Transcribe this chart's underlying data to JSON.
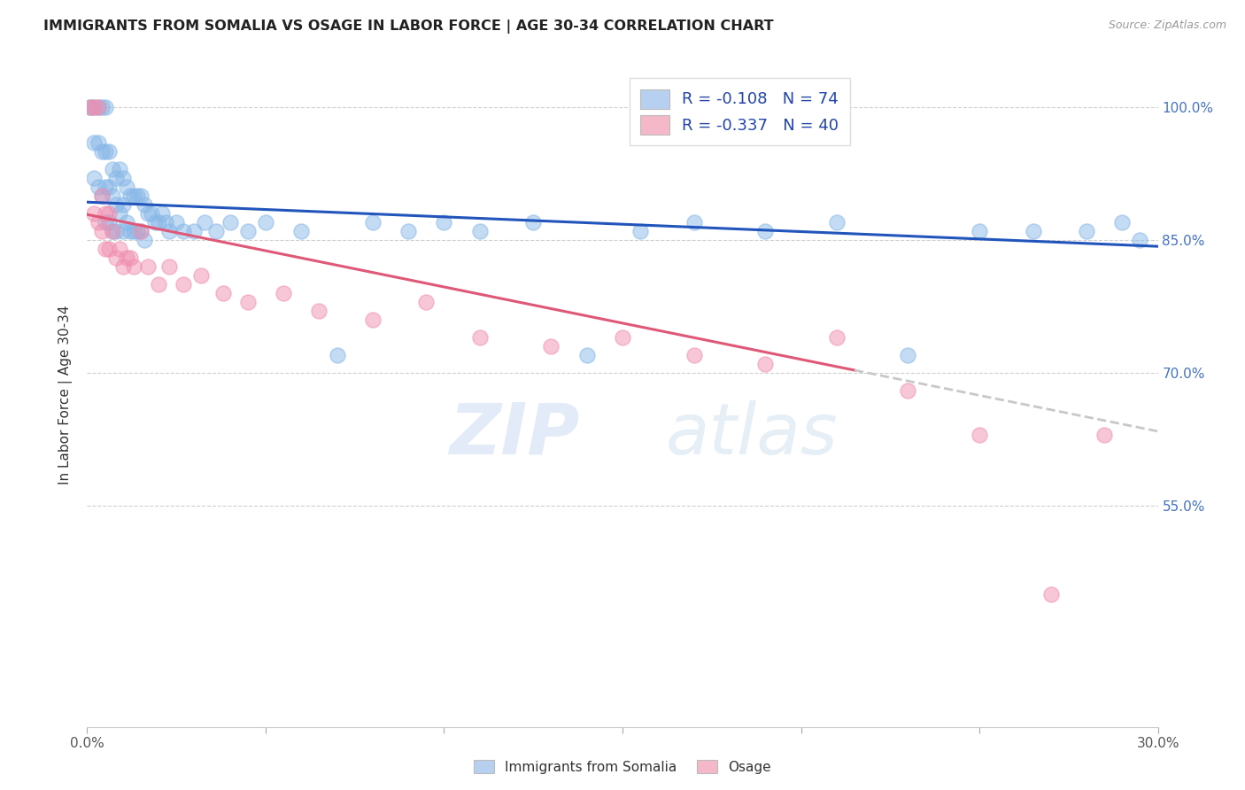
{
  "title": "IMMIGRANTS FROM SOMALIA VS OSAGE IN LABOR FORCE | AGE 30-34 CORRELATION CHART",
  "source": "Source: ZipAtlas.com",
  "ylabel": "In Labor Force | Age 30-34",
  "xmin": 0.0,
  "xmax": 0.3,
  "ymin": 0.3,
  "ymax": 1.05,
  "ytick_vals": [
    1.0,
    0.85,
    0.7,
    0.55
  ],
  "ytick_labels": [
    "100.0%",
    "85.0%",
    "70.0%",
    "55.0%"
  ],
  "legend1_color": "#b8d0f0",
  "legend2_color": "#f5b8c8",
  "scatter_blue_color": "#88b8e8",
  "scatter_pink_color": "#f090b0",
  "line_blue_color": "#2255bb",
  "line_pink_color": "#e05878",
  "line_dash_color": "#c8c8c8",
  "somalia_x": [
    0.001,
    0.001,
    0.002,
    0.002,
    0.002,
    0.003,
    0.003,
    0.003,
    0.004,
    0.004,
    0.004,
    0.005,
    0.005,
    0.005,
    0.005,
    0.006,
    0.006,
    0.006,
    0.007,
    0.007,
    0.007,
    0.008,
    0.008,
    0.008,
    0.009,
    0.009,
    0.01,
    0.01,
    0.01,
    0.011,
    0.011,
    0.012,
    0.012,
    0.013,
    0.013,
    0.014,
    0.014,
    0.015,
    0.015,
    0.016,
    0.016,
    0.017,
    0.018,
    0.019,
    0.02,
    0.021,
    0.022,
    0.023,
    0.025,
    0.027,
    0.03,
    0.033,
    0.036,
    0.04,
    0.045,
    0.05,
    0.06,
    0.07,
    0.08,
    0.09,
    0.1,
    0.11,
    0.125,
    0.14,
    0.155,
    0.17,
    0.19,
    0.21,
    0.23,
    0.25,
    0.265,
    0.28,
    0.29,
    0.295
  ],
  "somalia_y": [
    1.0,
    1.0,
    1.0,
    0.96,
    0.92,
    1.0,
    0.96,
    0.91,
    1.0,
    0.95,
    0.9,
    1.0,
    0.95,
    0.91,
    0.87,
    0.95,
    0.91,
    0.87,
    0.93,
    0.9,
    0.86,
    0.92,
    0.89,
    0.86,
    0.93,
    0.88,
    0.92,
    0.89,
    0.86,
    0.91,
    0.87,
    0.9,
    0.86,
    0.9,
    0.86,
    0.9,
    0.86,
    0.9,
    0.86,
    0.89,
    0.85,
    0.88,
    0.88,
    0.87,
    0.87,
    0.88,
    0.87,
    0.86,
    0.87,
    0.86,
    0.86,
    0.87,
    0.86,
    0.87,
    0.86,
    0.87,
    0.86,
    0.72,
    0.87,
    0.86,
    0.87,
    0.86,
    0.87,
    0.72,
    0.86,
    0.87,
    0.86,
    0.87,
    0.72,
    0.86,
    0.86,
    0.86,
    0.87,
    0.85
  ],
  "osage_x": [
    0.001,
    0.002,
    0.002,
    0.003,
    0.003,
    0.004,
    0.004,
    0.005,
    0.005,
    0.006,
    0.006,
    0.007,
    0.008,
    0.009,
    0.01,
    0.011,
    0.012,
    0.013,
    0.015,
    0.017,
    0.02,
    0.023,
    0.027,
    0.032,
    0.038,
    0.045,
    0.055,
    0.065,
    0.08,
    0.095,
    0.11,
    0.13,
    0.15,
    0.17,
    0.19,
    0.21,
    0.23,
    0.25,
    0.27,
    0.285
  ],
  "osage_y": [
    1.0,
    1.0,
    0.88,
    1.0,
    0.87,
    0.9,
    0.86,
    0.88,
    0.84,
    0.88,
    0.84,
    0.86,
    0.83,
    0.84,
    0.82,
    0.83,
    0.83,
    0.82,
    0.86,
    0.82,
    0.8,
    0.82,
    0.8,
    0.81,
    0.79,
    0.78,
    0.79,
    0.77,
    0.76,
    0.78,
    0.74,
    0.73,
    0.74,
    0.72,
    0.71,
    0.74,
    0.68,
    0.63,
    0.45,
    0.63
  ],
  "blue_line_x0": 0.0,
  "blue_line_y0": 0.893,
  "blue_line_x1": 0.3,
  "blue_line_y1": 0.843,
  "pink_line_x0": 0.0,
  "pink_line_y0": 0.879,
  "pink_line_x1_solid": 0.215,
  "pink_line_y1_solid": 0.703,
  "pink_line_x1_dash": 0.3,
  "pink_line_y1_dash": 0.634
}
